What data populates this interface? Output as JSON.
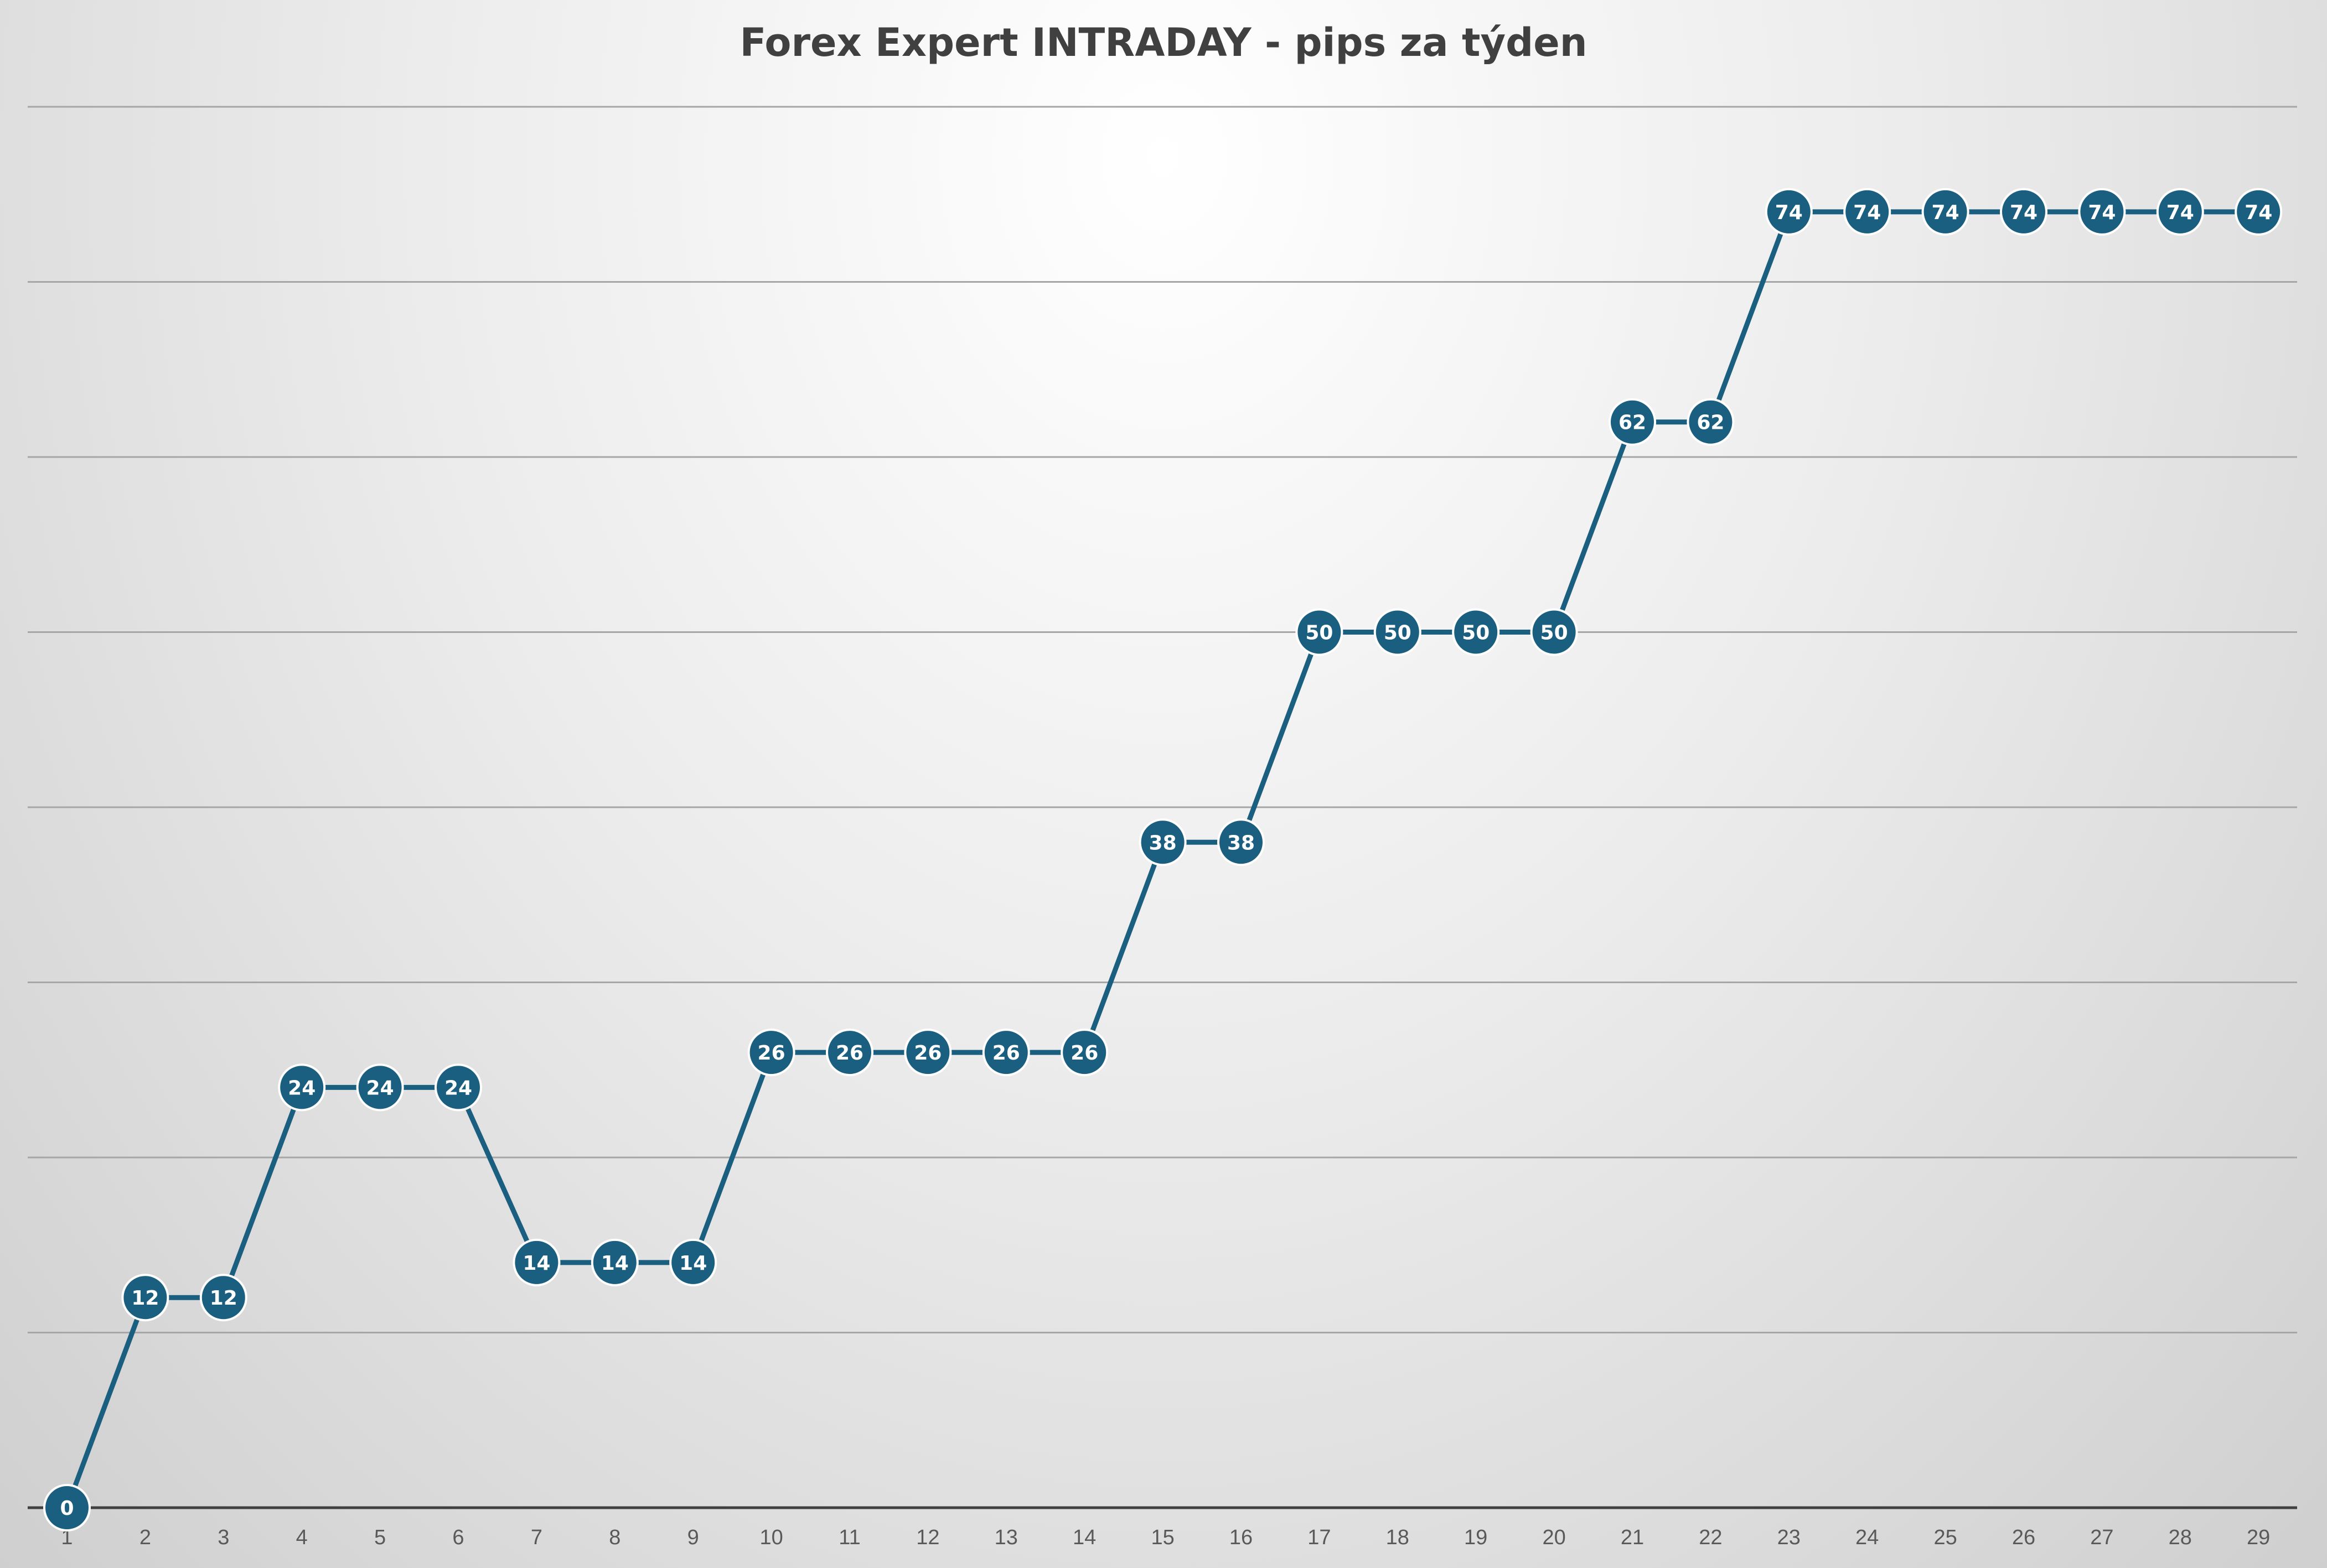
{
  "chart_data": {
    "type": "line",
    "title": "Forex Expert INTRADAY - pips za týden",
    "xlabel": "",
    "ylabel": "",
    "ylim": [
      0,
      80
    ],
    "x": [
      1,
      2,
      3,
      4,
      5,
      6,
      7,
      8,
      9,
      10,
      11,
      12,
      13,
      14,
      15,
      16,
      17,
      18,
      19,
      20,
      21,
      22,
      23,
      24,
      25,
      26,
      27,
      28,
      29
    ],
    "series": [
      {
        "values": [
          0,
          12,
          12,
          24,
          24,
          24,
          14,
          14,
          14,
          26,
          26,
          26,
          26,
          26,
          38,
          38,
          50,
          50,
          50,
          50,
          62,
          62,
          74,
          74,
          74,
          74,
          74,
          74,
          74
        ],
        "color": "#1a5f80"
      }
    ],
    "data_labels": true,
    "grid": true,
    "legend": "none",
    "colors": {
      "line": "#1a5f80",
      "label_text": "#ffffff",
      "gridline": "#a6a6a6",
      "axis": "#404040",
      "tick_text": "#595959",
      "title_text": "#404040"
    }
  }
}
